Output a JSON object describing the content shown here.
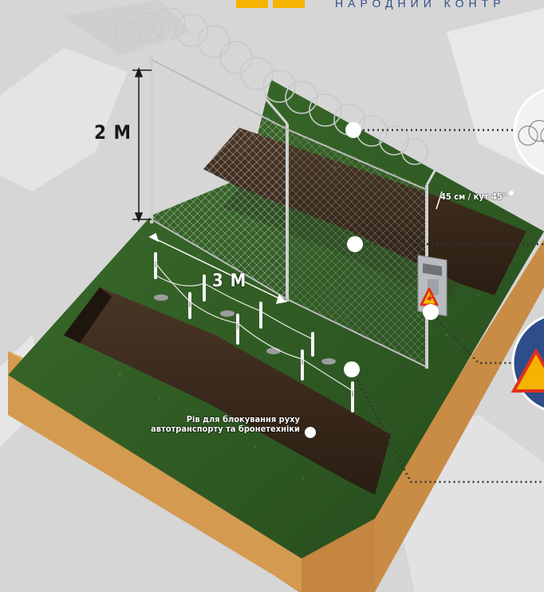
{
  "header": {
    "text": "НАРОДНИЙ КОНТР"
  },
  "dimensions": {
    "height_label": "2 М",
    "width_label": "3 М",
    "barbed_wire_label": "45 см / кут 45°"
  },
  "captions": {
    "ditch": "Рів для блокування руху автотранспорту та бронетехніки"
  },
  "colors": {
    "grass": "#2f5a24",
    "soil": "#d9a055",
    "earth": "#3a2a1c",
    "callout_dot": "#ffffff",
    "header_text": "#2e4d8a",
    "logo_yellow": "#f5b400",
    "warning_red": "#e0301e"
  }
}
